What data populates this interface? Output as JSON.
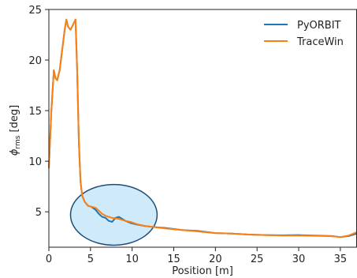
{
  "chart_data": {
    "type": "line",
    "xlabel": "Position [m]",
    "ylabel": {
      "symbol": "ϕ",
      "subscript": "rms",
      "unit": " [deg]"
    },
    "xlim": [
      0,
      37
    ],
    "ylim": [
      1.5,
      25
    ],
    "xticks": [
      0,
      5,
      10,
      15,
      20,
      25,
      30,
      35
    ],
    "yticks": [
      5,
      10,
      15,
      20,
      25
    ],
    "grid": false,
    "legend_position": "top-right",
    "series": [
      {
        "name": "PyORBIT",
        "color": "#1f77b4",
        "x": [
          0,
          0.3,
          0.6,
          0.8,
          1.0,
          1.3,
          1.6,
          1.9,
          2.1,
          2.3,
          2.6,
          2.9,
          3.2,
          3.4,
          3.6,
          3.8,
          4.0,
          4.3,
          4.7,
          5.1,
          5.6,
          6.0,
          6.4,
          6.8,
          7.2,
          7.6,
          8.0,
          8.4,
          8.8,
          9.2,
          9.8,
          10.5,
          11.5,
          12.5,
          14,
          16,
          18,
          20,
          22,
          24,
          26,
          28,
          30,
          32,
          34,
          35,
          36,
          37
        ],
        "y": [
          9.3,
          15,
          19,
          18.2,
          18,
          19,
          21,
          23,
          24,
          23.3,
          23,
          23.5,
          24,
          19,
          12,
          8,
          6.6,
          6.0,
          5.6,
          5.5,
          5.2,
          4.8,
          4.5,
          4.4,
          4.1,
          4.0,
          4.4,
          4.5,
          4.3,
          4.1,
          3.9,
          3.75,
          3.6,
          3.5,
          3.4,
          3.2,
          3.1,
          2.9,
          2.85,
          2.75,
          2.7,
          2.68,
          2.7,
          2.65,
          2.6,
          2.5,
          2.6,
          2.85
        ]
      },
      {
        "name": "TraceWin",
        "color": "#ff7f0e",
        "x": [
          0,
          0.3,
          0.6,
          0.8,
          1.0,
          1.3,
          1.6,
          1.9,
          2.1,
          2.3,
          2.6,
          2.9,
          3.2,
          3.4,
          3.6,
          3.8,
          4.0,
          4.3,
          4.7,
          5.1,
          5.6,
          6.0,
          6.4,
          6.8,
          7.2,
          7.6,
          8.0,
          8.4,
          8.8,
          9.2,
          9.8,
          10.5,
          11.5,
          12.5,
          14,
          16,
          18,
          20,
          22,
          24,
          26,
          28,
          30,
          32,
          34,
          35,
          36,
          37
        ],
        "y": [
          9.3,
          15,
          19,
          18.2,
          18,
          19,
          21,
          23,
          24,
          23.3,
          23,
          23.5,
          24,
          19,
          12,
          8,
          6.6,
          6.0,
          5.6,
          5.5,
          5.4,
          5.1,
          4.8,
          4.6,
          4.5,
          4.4,
          4.35,
          4.3,
          4.2,
          4.1,
          4.0,
          3.8,
          3.6,
          3.5,
          3.35,
          3.2,
          3.05,
          2.9,
          2.85,
          2.75,
          2.7,
          2.65,
          2.65,
          2.62,
          2.58,
          2.5,
          2.65,
          3.0
        ]
      }
    ],
    "annotations": [
      {
        "type": "ellipse",
        "cx": 7.8,
        "cy": 4.7,
        "rx": 5.2,
        "ry": 3.0,
        "fill": "#bfe3f5",
        "stroke": "#1f4e79"
      }
    ]
  }
}
